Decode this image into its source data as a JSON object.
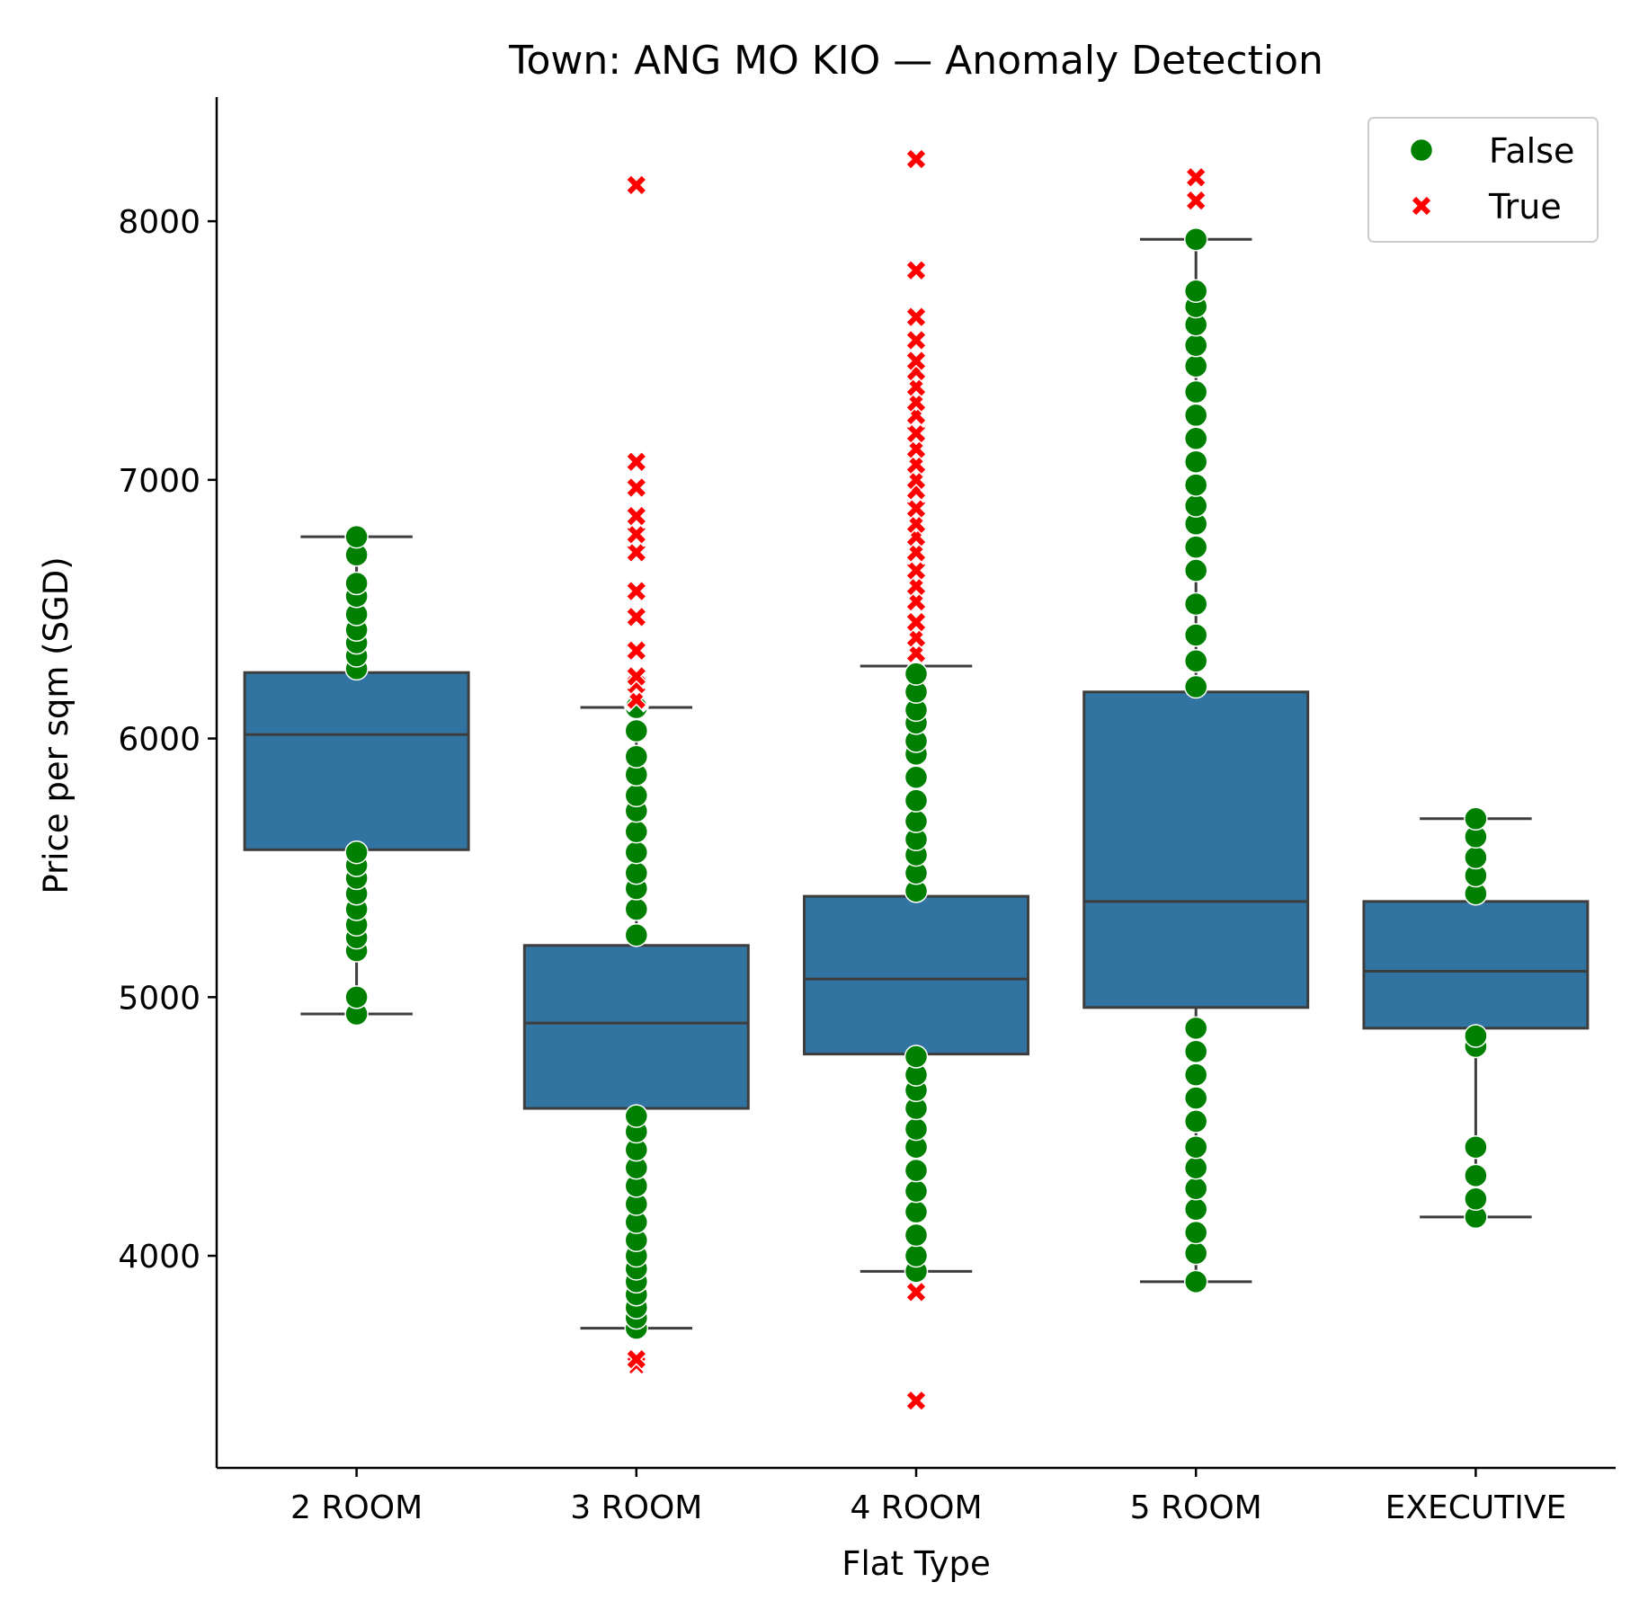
{
  "chart_data": {
    "type": "box",
    "title": "Town: ANG MO KIO — Anomaly Detection",
    "xlabel": "Flat Type",
    "ylabel": "Price per sqm (SGD)",
    "categories": [
      "2 ROOM",
      "3 ROOM",
      "4 ROOM",
      "5 ROOM",
      "EXECUTIVE"
    ],
    "ylim": [
      3180,
      8480
    ],
    "yticks": [
      4000,
      5000,
      6000,
      7000,
      8000
    ],
    "grid": false,
    "legend": {
      "position": "top-right",
      "entries": [
        {
          "label": "False",
          "marker": "circle",
          "color": "#008000"
        },
        {
          "label": "True",
          "marker": "x",
          "color": "#ff0000"
        }
      ]
    },
    "colors": {
      "box_fill": "#3274a1",
      "box_edge": "#3d3d3d",
      "normal": "#008000",
      "anomaly": "#ff0000"
    },
    "boxes": [
      {
        "category": "2 ROOM",
        "whisker_low": 4935,
        "q1": 5570,
        "median": 6015,
        "q3": 6255,
        "whisker_high": 6780,
        "normal_points": [
          4935,
          5000,
          5180,
          5230,
          5280,
          5340,
          5400,
          5460,
          5510,
          5560,
          6270,
          6320,
          6370,
          6420,
          6480,
          6550,
          6600,
          6710,
          6780
        ],
        "anomaly_points": []
      },
      {
        "category": "3 ROOM",
        "whisker_low": 3720,
        "q1": 4570,
        "median": 4900,
        "q3": 5200,
        "whisker_high": 6120,
        "normal_points": [
          3720,
          3760,
          3800,
          3850,
          3900,
          3950,
          4000,
          4060,
          4130,
          4200,
          4270,
          4340,
          4410,
          4480,
          4540,
          5240,
          5340,
          5420,
          5480,
          5560,
          5640,
          5720,
          5780,
          5860,
          5930,
          6030,
          6120
        ],
        "anomaly_points": [
          3580,
          3600,
          6150,
          6210,
          6240,
          6340,
          6470,
          6570,
          6720,
          6790,
          6860,
          6970,
          7070,
          8140
        ]
      },
      {
        "category": "4 ROOM",
        "whisker_low": 3940,
        "q1": 4780,
        "median": 5070,
        "q3": 5390,
        "whisker_high": 6280,
        "normal_points": [
          3940,
          4000,
          4080,
          4170,
          4250,
          4330,
          4420,
          4490,
          4570,
          4640,
          4700,
          4770,
          5410,
          5480,
          5550,
          5610,
          5680,
          5760,
          5850,
          5940,
          5990,
          6060,
          6110,
          6180,
          6250
        ],
        "anomaly_points": [
          3440,
          3860,
          6330,
          6390,
          6450,
          6530,
          6590,
          6650,
          6720,
          6780,
          6830,
          6890,
          6960,
          7000,
          7060,
          7120,
          7180,
          7250,
          7300,
          7360,
          7420,
          7460,
          7540,
          7630,
          7810,
          8240
        ]
      },
      {
        "category": "5 ROOM",
        "whisker_low": 3900,
        "q1": 4960,
        "median": 5370,
        "q3": 6180,
        "whisker_high": 7930,
        "normal_points": [
          3900,
          4010,
          4090,
          4180,
          4260,
          4340,
          4420,
          4520,
          4610,
          4700,
          4790,
          4880,
          6200,
          6300,
          6400,
          6520,
          6650,
          6740,
          6830,
          6900,
          6980,
          7070,
          7160,
          7250,
          7340,
          7440,
          7520,
          7600,
          7670,
          7730,
          7930
        ],
        "anomaly_points": [
          8080,
          8170
        ]
      },
      {
        "category": "EXECUTIVE",
        "whisker_low": 4150,
        "q1": 4880,
        "median": 5100,
        "q3": 5370,
        "whisker_high": 5690,
        "normal_points": [
          4150,
          4220,
          4310,
          4420,
          4810,
          4850,
          5400,
          5470,
          5540,
          5620,
          5690
        ],
        "anomaly_points": []
      }
    ]
  }
}
